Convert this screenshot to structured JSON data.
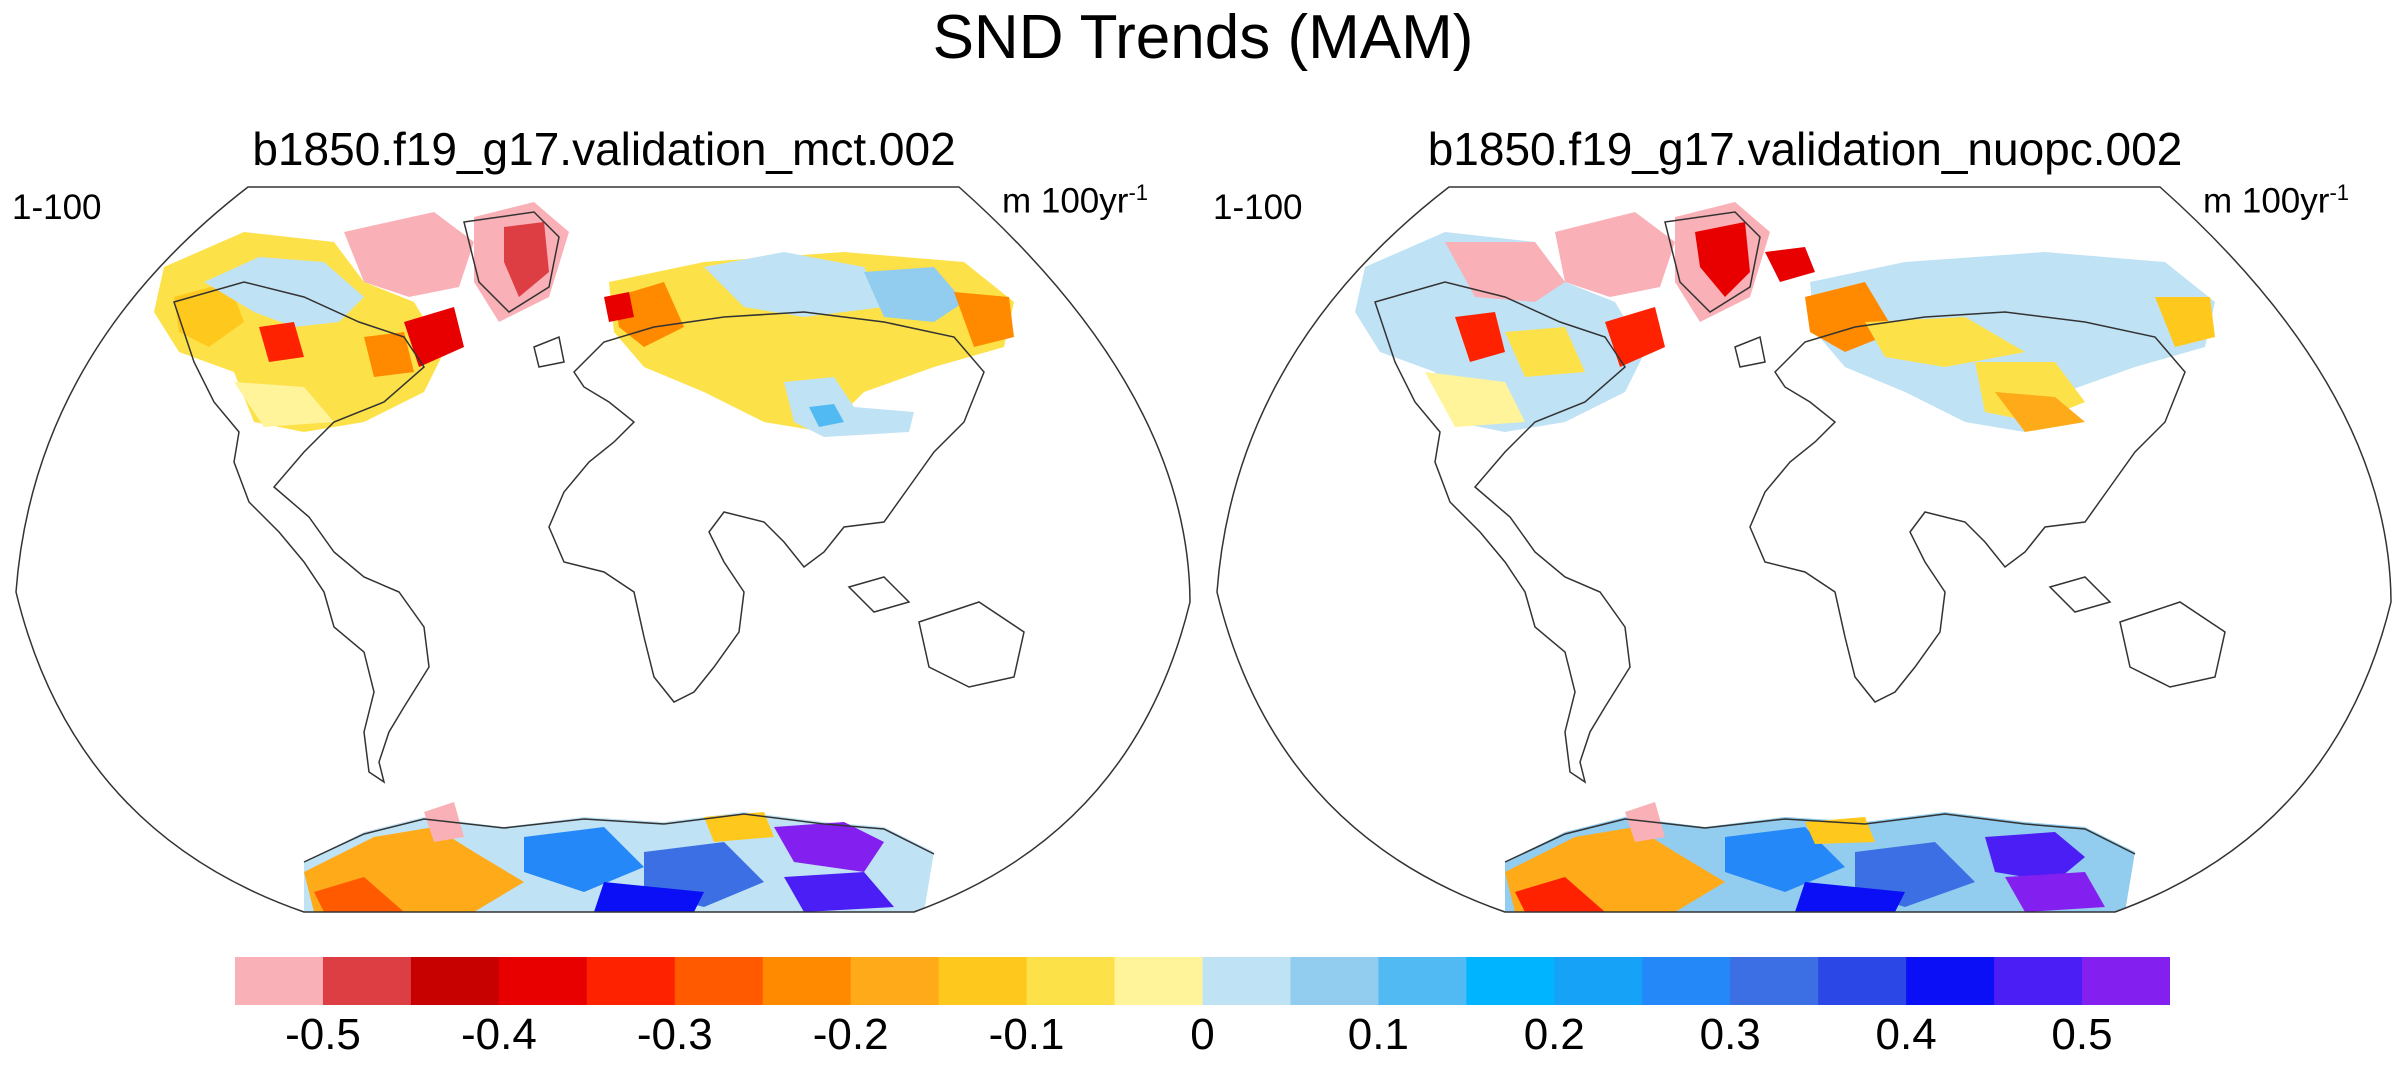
{
  "title": "SND Trends (MAM)",
  "panels": [
    {
      "title": "b1850.f19_g17.validation_mct.002",
      "left_label": "1-100",
      "units_main": "m 100yr",
      "units_sup": "-1"
    },
    {
      "title": "b1850.f19_g17.validation_nuopc.002",
      "left_label": "1-100",
      "units_main": "m 100yr",
      "units_sup": "-1"
    }
  ],
  "colorbar": {
    "colors": [
      "#f9b0b6",
      "#dd3e44",
      "#c70000",
      "#e80000",
      "#ff2200",
      "#ff5a00",
      "#ff8a00",
      "#ffaa18",
      "#ffc81c",
      "#fde148",
      "#fff49a",
      "#c0e2f5",
      "#92ccee",
      "#51baf2",
      "#00b4ff",
      "#16a2f7",
      "#2588f8",
      "#3c6fe4",
      "#2b48e6",
      "#0a0ff5",
      "#4a1ef5",
      "#8420ef"
    ],
    "labels": [
      "-0.5",
      "-0.4",
      "-0.3",
      "-0.2",
      "-0.1",
      "0",
      "0.1",
      "0.2",
      "0.3",
      "0.4",
      "0.5"
    ],
    "label_values": [
      -0.5,
      -0.4,
      -0.3,
      -0.2,
      -0.1,
      0,
      0.1,
      0.2,
      0.3,
      0.4,
      0.5
    ],
    "min": -0.55,
    "max": 0.55
  }
}
